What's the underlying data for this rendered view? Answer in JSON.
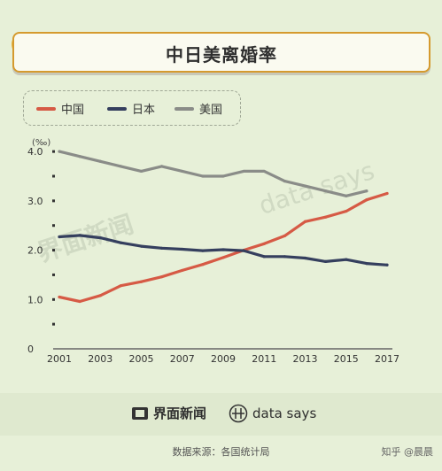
{
  "chart_data": {
    "type": "line",
    "title": "中日美离婚率",
    "ylabel": "(‰)",
    "xlabel": "",
    "x": [
      2001,
      2002,
      2003,
      2004,
      2005,
      2006,
      2007,
      2008,
      2009,
      2010,
      2011,
      2012,
      2013,
      2014,
      2015,
      2016,
      2017
    ],
    "x_ticks": [
      "2001",
      "2003",
      "2005",
      "2007",
      "2009",
      "2011",
      "2013",
      "2015",
      "2017"
    ],
    "y_ticks": [
      "0",
      "1.0",
      "2.0",
      "3.0",
      "4.0"
    ],
    "ylim": [
      0,
      4.2
    ],
    "grid": false,
    "legend_position": "top-left",
    "series": [
      {
        "name": "中国",
        "color": "#d65a45",
        "values": [
          1.05,
          0.96,
          1.08,
          1.28,
          1.36,
          1.46,
          1.59,
          1.71,
          1.85,
          2.0,
          2.13,
          2.29,
          2.58,
          2.67,
          2.79,
          3.02,
          3.15
        ]
      },
      {
        "name": "日本",
        "color": "#353f5e",
        "values": [
          2.27,
          2.3,
          2.25,
          2.15,
          2.08,
          2.04,
          2.02,
          1.99,
          2.01,
          1.99,
          1.87,
          1.87,
          1.84,
          1.77,
          1.81,
          1.73,
          1.7
        ]
      },
      {
        "name": "美国",
        "color": "#8a8c88",
        "values": [
          4.0,
          3.9,
          3.8,
          3.7,
          3.6,
          3.7,
          3.6,
          3.5,
          3.5,
          3.6,
          3.6,
          3.4,
          3.3,
          3.2,
          3.1,
          3.2,
          null
        ]
      }
    ]
  },
  "footer": {
    "brand1": "界面新闻",
    "brand2": "data says",
    "source": "数据来源：各国统计局",
    "credit": "知乎 @晨晨"
  }
}
